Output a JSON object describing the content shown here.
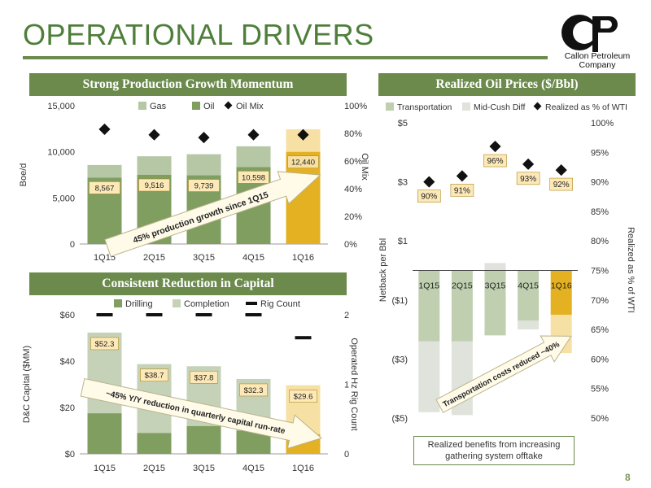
{
  "title": "OPERATIONAL DRIVERS",
  "logo": {
    "line1": "Callon Petroleum",
    "line2": "Company"
  },
  "page_number": "8",
  "panels": {
    "production": "Strong Production Growth Momentum",
    "prices": "Realized Oil Prices ($/Bbl)",
    "capital": "Consistent Reduction in Capital"
  },
  "colors": {
    "gas": "#b5c7a5",
    "oil": "#7f9e5f",
    "highlight": "#e4b122",
    "highlight_light": "#f7e0a3",
    "transport": "#bfcfb0",
    "midcush": "#dfe3db",
    "accent": "#6b8a4c"
  },
  "chart_data": [
    {
      "type": "bar",
      "name": "production",
      "categories": [
        "1Q15",
        "2Q15",
        "3Q15",
        "4Q15",
        "1Q16"
      ],
      "series": [
        {
          "name": "Gas",
          "values": [
            8567,
            9516,
            9739,
            10598,
            12440
          ]
        },
        {
          "name": "Oil",
          "values": [
            7200,
            7500,
            7450,
            8350,
            10000
          ]
        },
        {
          "name": "Oil Mix",
          "values": [
            83,
            79,
            77,
            79,
            79
          ]
        }
      ],
      "data_labels": [
        "8,567",
        "9,516",
        "9,739",
        "10,598",
        "12,440"
      ],
      "ylabel": "Boe/d",
      "y2label": "Oil Mix",
      "ylim": [
        0,
        15000
      ],
      "y2lim": [
        0,
        100
      ],
      "yticks": [
        "0",
        "5,000",
        "10,000",
        "15,000"
      ],
      "y2ticks": [
        "0%",
        "20%",
        "40%",
        "60%",
        "80%",
        "100%"
      ],
      "annotation": "45% production growth since 1Q15",
      "legend_position": "top"
    },
    {
      "type": "bar",
      "name": "prices",
      "categories": [
        "1Q15",
        "2Q15",
        "3Q15",
        "4Q15",
        "1Q16"
      ],
      "series": [
        {
          "name": "Transportation",
          "values": [
            -2.4,
            -2.4,
            -2.2,
            -1.7,
            -1.5
          ]
        },
        {
          "name": "Mid-Cush Diff",
          "values": [
            -2.4,
            -2.5,
            0.25,
            -0.3,
            -1.3
          ]
        },
        {
          "name": "Realized as % of WTI",
          "values": [
            90,
            91,
            96,
            93,
            92
          ]
        }
      ],
      "data_labels": [
        "90%",
        "91%",
        "96%",
        "93%",
        "92%"
      ],
      "ylabel": "Netback per Bbl",
      "y2label": "Realized as % of WTI",
      "ylim": [
        -5,
        5
      ],
      "y2lim": [
        50,
        100
      ],
      "yticks": [
        "($5)",
        "($3)",
        "($1)",
        "$1",
        "$3",
        "$5"
      ],
      "y2ticks": [
        "50%",
        "55%",
        "60%",
        "65%",
        "70%",
        "75%",
        "80%",
        "85%",
        "90%",
        "95%",
        "100%"
      ],
      "annotation": "Transportation costs reduced ~40%",
      "legend_position": "top"
    },
    {
      "type": "bar",
      "name": "capital",
      "categories": [
        "1Q15",
        "2Q15",
        "3Q15",
        "4Q15",
        "1Q16"
      ],
      "series": [
        {
          "name": "Drilling",
          "values": [
            17.5,
            9,
            12,
            10,
            8.5
          ]
        },
        {
          "name": "Completion",
          "values": [
            34.8,
            29.7,
            25.8,
            22.3,
            21.1
          ]
        },
        {
          "name": "Rig Count",
          "values": [
            2,
            2,
            2,
            2,
            1.67
          ]
        }
      ],
      "data_labels": [
        "$52.3",
        "$38.7",
        "$37.8",
        "$32.3",
        "$29.6"
      ],
      "ylabel": "D&C Capital ($MM)",
      "y2label": "Operated Hz Rig Count",
      "ylim": [
        0,
        60
      ],
      "y2lim": [
        0,
        2
      ],
      "yticks": [
        "$0",
        "$20",
        "$40",
        "$60"
      ],
      "y2ticks": [
        "0",
        "1",
        "2"
      ],
      "annotation": "~45% Y/Y reduction in quarterly capital run-rate",
      "legend_position": "top"
    }
  ],
  "note": "Realized benefits from increasing gathering system offtake"
}
